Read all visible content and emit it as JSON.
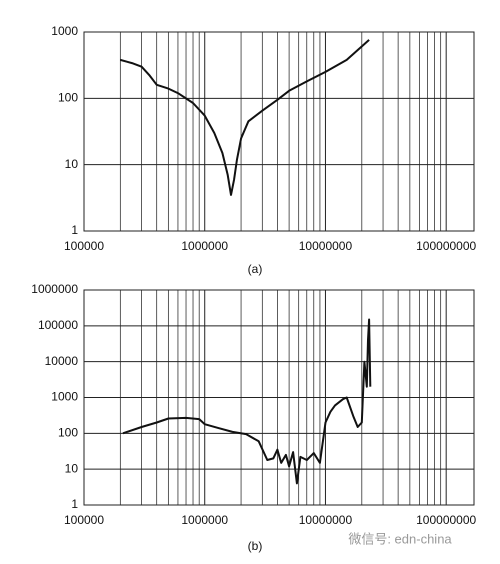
{
  "watermark": "微信号: edn-china",
  "chart_data": [
    {
      "type": "line",
      "caption": "(a)",
      "xlog": true,
      "ylog": true,
      "grid": true,
      "color": "#111111",
      "xlim": [
        100000,
        170000000
      ],
      "ylim": [
        1,
        1000
      ],
      "xticks": [
        100000,
        1000000,
        10000000,
        100000000
      ],
      "yticks": [
        1,
        10,
        100,
        1000
      ],
      "x": [
        200000,
        250000,
        300000,
        350000,
        400000,
        500000,
        600000,
        800000,
        1000000,
        1200000,
        1400000,
        1550000,
        1650000,
        1750000,
        1850000,
        2000000,
        2300000,
        3000000,
        4000000,
        5000000,
        7000000,
        10000000,
        15000000,
        23000000
      ],
      "values": [
        380,
        340,
        300,
        220,
        160,
        140,
        120,
        85,
        55,
        30,
        15,
        7,
        3.5,
        6,
        12,
        25,
        45,
        65,
        95,
        130,
        180,
        250,
        380,
        760
      ]
    },
    {
      "type": "line",
      "caption": "(b)",
      "xlog": true,
      "ylog": true,
      "grid": true,
      "color": "#111111",
      "xlim": [
        100000,
        170000000
      ],
      "ylim": [
        1,
        1000000
      ],
      "xticks": [
        100000,
        1000000,
        10000000,
        100000000
      ],
      "yticks": [
        1,
        10,
        100,
        1000,
        10000,
        100000,
        1000000
      ],
      "x": [
        210000,
        300000,
        400000,
        500000,
        700000,
        900000,
        1000000,
        1300000,
        1700000,
        2200000,
        2800000,
        3300000,
        3700000,
        4000000,
        4300000,
        4700000,
        5000000,
        5400000,
        5800000,
        6200000,
        7000000,
        8000000,
        9000000,
        10000000,
        11000000,
        12000000,
        14000000,
        15000000,
        17000000,
        18500000,
        20000000,
        21000000,
        22000000,
        22500000,
        23000000,
        23500000
      ],
      "values": [
        100,
        150,
        200,
        260,
        270,
        250,
        180,
        140,
        110,
        95,
        60,
        18,
        20,
        35,
        15,
        25,
        12,
        30,
        4,
        22,
        18,
        28,
        15,
        200,
        400,
        600,
        900,
        1000,
        300,
        150,
        200,
        10000,
        2000,
        40000,
        150000,
        2000
      ]
    }
  ]
}
